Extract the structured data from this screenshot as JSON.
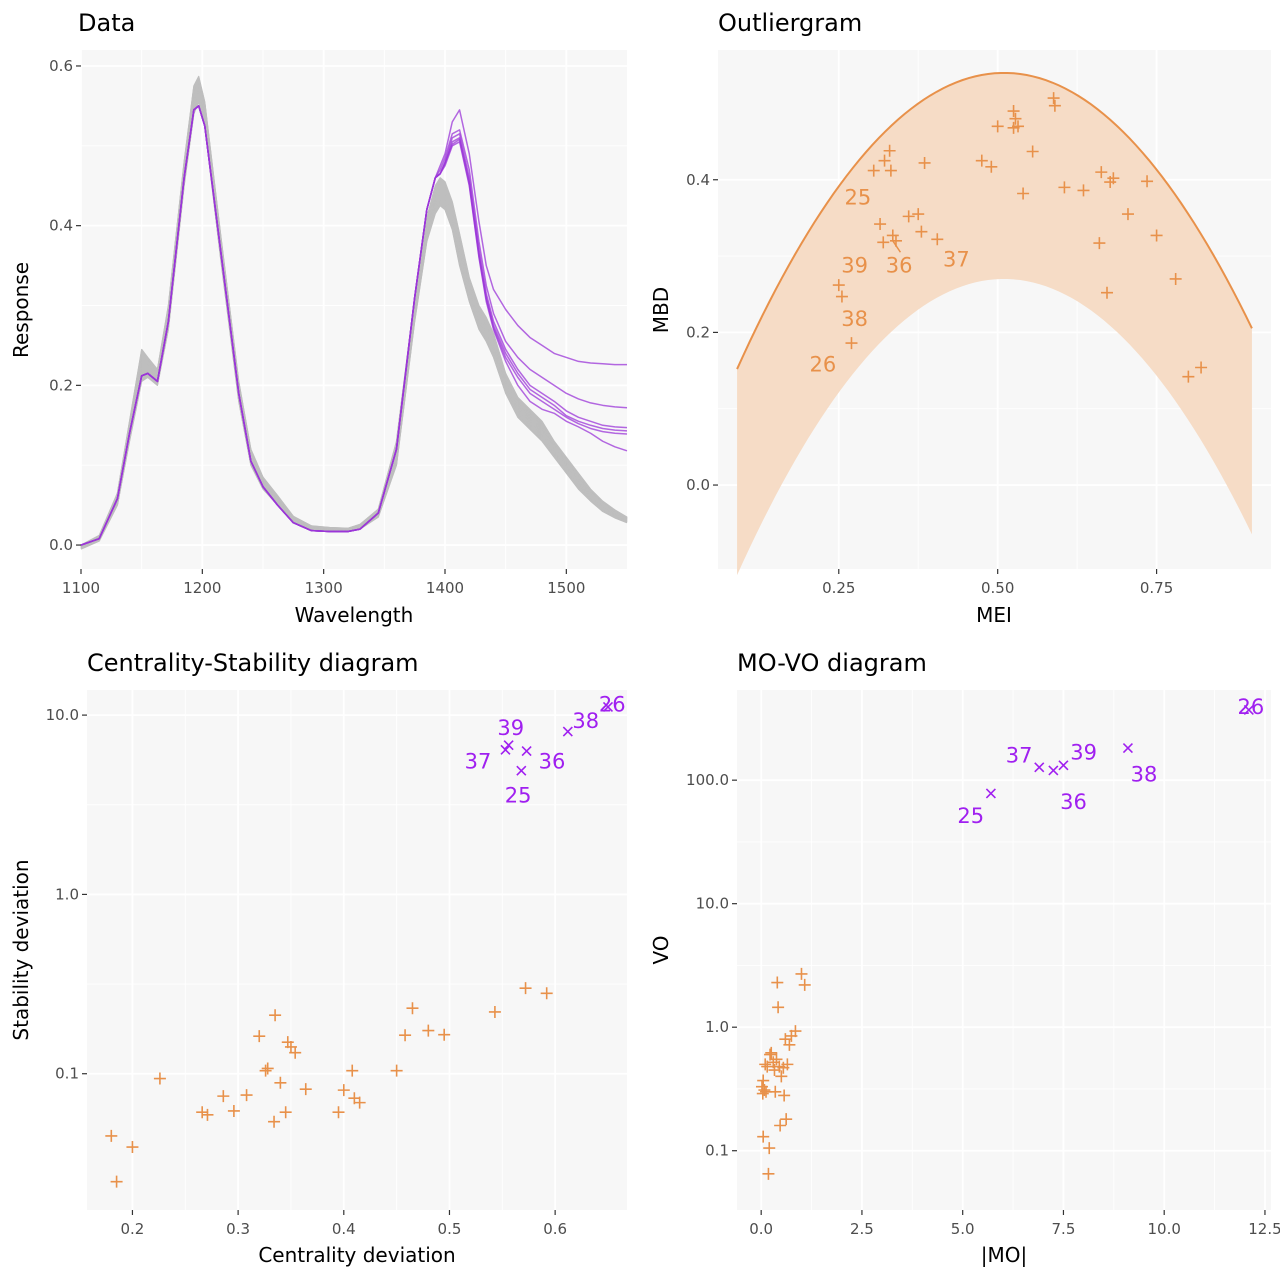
{
  "colors": {
    "background": "#ffffff",
    "panel": "#f7f7f7",
    "grid_major": "#ffffff",
    "regular_curve": "#bebebe",
    "outlier": "#a020f0",
    "outlier_curve": "#9b35d8",
    "regular_point": "#e8914a",
    "band_fill": "#f6dcc6",
    "tick_text": "#4d4d4d"
  },
  "chart_data": [
    {
      "id": "data",
      "type": "line",
      "title": "Data",
      "xlabel": "Wavelength",
      "ylabel": "Response",
      "xlim": [
        1100,
        1550
      ],
      "ylim": [
        -0.03,
        0.62
      ],
      "xticks": [
        1100,
        1200,
        1300,
        1400,
        1500
      ],
      "xtick_labels": [
        "1100",
        "1200",
        "1300",
        "1400",
        "1500"
      ],
      "yticks": [
        0.0,
        0.2,
        0.4,
        0.6
      ],
      "ytick_labels": [
        "0.0",
        "0.2",
        "0.4",
        "0.6"
      ],
      "x": [
        1100,
        1115,
        1130,
        1140,
        1150,
        1155,
        1163,
        1172,
        1185,
        1193,
        1197,
        1202,
        1215,
        1230,
        1240,
        1250,
        1262,
        1275,
        1290,
        1305,
        1320,
        1330,
        1345,
        1360,
        1375,
        1385,
        1392,
        1396,
        1400,
        1406,
        1412,
        1420,
        1428,
        1434,
        1440,
        1450,
        1460,
        1470,
        1480,
        1490,
        1500,
        1510,
        1520,
        1530,
        1540,
        1550
      ],
      "regular_band": {
        "lower": [
          -0.005,
          0.005,
          0.05,
          0.13,
          0.205,
          0.21,
          0.2,
          0.27,
          0.45,
          0.54,
          0.555,
          0.525,
          0.36,
          0.18,
          0.1,
          0.07,
          0.05,
          0.028,
          0.018,
          0.017,
          0.017,
          0.02,
          0.035,
          0.1,
          0.28,
          0.38,
          0.415,
          0.425,
          0.42,
          0.395,
          0.35,
          0.305,
          0.27,
          0.255,
          0.235,
          0.19,
          0.16,
          0.145,
          0.13,
          0.11,
          0.09,
          0.07,
          0.055,
          0.042,
          0.034,
          0.028
        ],
        "upper": [
          0.0,
          0.012,
          0.065,
          0.155,
          0.245,
          0.235,
          0.22,
          0.3,
          0.48,
          0.575,
          0.587,
          0.555,
          0.39,
          0.205,
          0.12,
          0.085,
          0.062,
          0.036,
          0.024,
          0.022,
          0.021,
          0.026,
          0.045,
          0.13,
          0.31,
          0.41,
          0.45,
          0.46,
          0.455,
          0.43,
          0.39,
          0.335,
          0.3,
          0.285,
          0.265,
          0.215,
          0.185,
          0.17,
          0.155,
          0.13,
          0.11,
          0.09,
          0.07,
          0.055,
          0.044,
          0.035
        ]
      },
      "outlier_curves": [
        {
          "values": [
            0.0,
            0.008,
            0.058,
            0.14,
            0.212,
            0.215,
            0.205,
            0.28,
            0.46,
            0.545,
            0.55,
            0.525,
            0.37,
            0.19,
            0.105,
            0.073,
            0.05,
            0.028,
            0.018,
            0.017,
            0.017,
            0.02,
            0.04,
            0.12,
            0.31,
            0.42,
            0.46,
            0.475,
            0.49,
            0.53,
            0.545,
            0.49,
            0.405,
            0.35,
            0.32,
            0.295,
            0.275,
            0.26,
            0.25,
            0.24,
            0.235,
            0.23,
            0.228,
            0.227,
            0.226,
            0.226
          ]
        },
        {
          "values": [
            0.0,
            0.008,
            0.058,
            0.14,
            0.212,
            0.215,
            0.205,
            0.28,
            0.46,
            0.545,
            0.55,
            0.525,
            0.37,
            0.19,
            0.105,
            0.073,
            0.05,
            0.028,
            0.018,
            0.017,
            0.017,
            0.02,
            0.04,
            0.12,
            0.31,
            0.42,
            0.46,
            0.47,
            0.485,
            0.515,
            0.52,
            0.47,
            0.38,
            0.325,
            0.29,
            0.255,
            0.235,
            0.22,
            0.21,
            0.2,
            0.19,
            0.183,
            0.178,
            0.175,
            0.173,
            0.172
          ]
        },
        {
          "values": [
            0.0,
            0.008,
            0.058,
            0.14,
            0.212,
            0.215,
            0.205,
            0.28,
            0.46,
            0.545,
            0.55,
            0.525,
            0.37,
            0.19,
            0.105,
            0.073,
            0.05,
            0.028,
            0.018,
            0.017,
            0.017,
            0.02,
            0.04,
            0.12,
            0.31,
            0.42,
            0.46,
            0.465,
            0.48,
            0.51,
            0.515,
            0.46,
            0.37,
            0.315,
            0.28,
            0.245,
            0.22,
            0.2,
            0.19,
            0.18,
            0.168,
            0.16,
            0.155,
            0.15,
            0.148,
            0.147
          ]
        },
        {
          "values": [
            0.0,
            0.008,
            0.058,
            0.14,
            0.212,
            0.215,
            0.205,
            0.28,
            0.46,
            0.545,
            0.55,
            0.525,
            0.37,
            0.19,
            0.105,
            0.073,
            0.05,
            0.028,
            0.018,
            0.017,
            0.017,
            0.02,
            0.04,
            0.12,
            0.31,
            0.42,
            0.46,
            0.465,
            0.478,
            0.505,
            0.51,
            0.455,
            0.365,
            0.31,
            0.275,
            0.24,
            0.215,
            0.195,
            0.185,
            0.175,
            0.162,
            0.155,
            0.15,
            0.146,
            0.144,
            0.143
          ]
        },
        {
          "values": [
            0.0,
            0.008,
            0.058,
            0.14,
            0.212,
            0.215,
            0.205,
            0.28,
            0.46,
            0.545,
            0.55,
            0.525,
            0.37,
            0.19,
            0.105,
            0.073,
            0.05,
            0.028,
            0.018,
            0.017,
            0.017,
            0.02,
            0.04,
            0.12,
            0.31,
            0.42,
            0.46,
            0.465,
            0.475,
            0.5,
            0.505,
            0.45,
            0.36,
            0.305,
            0.27,
            0.23,
            0.2,
            0.18,
            0.17,
            0.165,
            0.155,
            0.148,
            0.14,
            0.13,
            0.123,
            0.118
          ]
        },
        {
          "values": [
            0.0,
            0.008,
            0.058,
            0.14,
            0.212,
            0.215,
            0.205,
            0.28,
            0.46,
            0.545,
            0.55,
            0.525,
            0.37,
            0.19,
            0.105,
            0.073,
            0.05,
            0.028,
            0.018,
            0.017,
            0.017,
            0.02,
            0.04,
            0.12,
            0.31,
            0.42,
            0.46,
            0.465,
            0.478,
            0.502,
            0.508,
            0.452,
            0.362,
            0.308,
            0.272,
            0.235,
            0.21,
            0.19,
            0.18,
            0.17,
            0.16,
            0.152,
            0.146,
            0.142,
            0.14,
            0.139
          ]
        }
      ]
    },
    {
      "id": "outliergram",
      "type": "scatter",
      "title": "Outliergram",
      "xlabel": "MEI",
      "ylabel": "MBD",
      "xlim": [
        0.06,
        0.93
      ],
      "ylim": [
        -0.11,
        0.57
      ],
      "xticks": [
        0.25,
        0.5,
        0.75
      ],
      "xtick_labels": [
        "0.25",
        "0.50",
        "0.75"
      ],
      "yticks": [
        0.0,
        0.2,
        0.4
      ],
      "ytick_labels": [
        "0.0",
        "0.2",
        "0.4"
      ],
      "parabola": {
        "vertex_x": 0.51,
        "upper_peak": 0.54,
        "lower_peak": 0.27,
        "upper_curvature": 2.2,
        "lower_curvature": 2.2,
        "x_from": 0.09,
        "x_to": 0.9
      },
      "points": [
        [
          0.25,
          0.262
        ],
        [
          0.255,
          0.247
        ],
        [
          0.27,
          0.186
        ],
        [
          0.305,
          0.412
        ],
        [
          0.315,
          0.342
        ],
        [
          0.32,
          0.318
        ],
        [
          0.322,
          0.425
        ],
        [
          0.33,
          0.438
        ],
        [
          0.332,
          0.412
        ],
        [
          0.335,
          0.327
        ],
        [
          0.34,
          0.32
        ],
        [
          0.36,
          0.352
        ],
        [
          0.375,
          0.355
        ],
        [
          0.38,
          0.332
        ],
        [
          0.385,
          0.422
        ],
        [
          0.405,
          0.322
        ],
        [
          0.475,
          0.425
        ],
        [
          0.49,
          0.417
        ],
        [
          0.5,
          0.47
        ],
        [
          0.525,
          0.49
        ],
        [
          0.528,
          0.48
        ],
        [
          0.525,
          0.468
        ],
        [
          0.532,
          0.47
        ],
        [
          0.54,
          0.382
        ],
        [
          0.555,
          0.437
        ],
        [
          0.588,
          0.507
        ],
        [
          0.59,
          0.497
        ],
        [
          0.605,
          0.39
        ],
        [
          0.635,
          0.386
        ],
        [
          0.66,
          0.317
        ],
        [
          0.663,
          0.41
        ],
        [
          0.672,
          0.252
        ],
        [
          0.677,
          0.397
        ],
        [
          0.682,
          0.402
        ],
        [
          0.705,
          0.355
        ],
        [
          0.735,
          0.398
        ],
        [
          0.75,
          0.327
        ],
        [
          0.78,
          0.27
        ],
        [
          0.8,
          0.142
        ],
        [
          0.82,
          0.154
        ]
      ],
      "labels": [
        {
          "text": "25",
          "x": 0.28,
          "y": 0.378
        },
        {
          "text": "39",
          "x": 0.275,
          "y": 0.289
        },
        {
          "text": "36",
          "x": 0.345,
          "y": 0.289
        },
        {
          "text": "37",
          "x": 0.435,
          "y": 0.297
        },
        {
          "text": "38",
          "x": 0.275,
          "y": 0.219
        },
        {
          "text": "26",
          "x": 0.225,
          "y": 0.159
        }
      ],
      "leader_lines": [
        [
          0.335,
          0.32,
          0.347,
          0.305
        ]
      ]
    },
    {
      "id": "centrality-stability",
      "type": "scatter",
      "title": "Centrality-Stability diagram",
      "xlabel": "Centrality deviation",
      "ylabel": "Stability deviation",
      "xlim": [
        0.157,
        0.668
      ],
      "ylim_log10": [
        -1.76,
        1.14
      ],
      "log_y": true,
      "xticks": [
        0.2,
        0.3,
        0.4,
        0.5,
        0.6
      ],
      "xtick_labels": [
        "0.2",
        "0.3",
        "0.4",
        "0.5",
        "0.6"
      ],
      "yticks": [
        0.1,
        1.0,
        10.0
      ],
      "ytick_labels": [
        "0.1",
        "1.0",
        "10.0"
      ],
      "regular_points": [
        [
          0.18,
          0.045
        ],
        [
          0.185,
          0.025
        ],
        [
          0.2,
          0.039
        ],
        [
          0.226,
          0.094
        ],
        [
          0.266,
          0.061
        ],
        [
          0.271,
          0.059
        ],
        [
          0.286,
          0.075
        ],
        [
          0.296,
          0.062
        ],
        [
          0.308,
          0.076
        ],
        [
          0.32,
          0.162
        ],
        [
          0.326,
          0.104
        ],
        [
          0.328,
          0.107
        ],
        [
          0.334,
          0.054
        ],
        [
          0.335,
          0.212
        ],
        [
          0.34,
          0.089
        ],
        [
          0.345,
          0.061
        ],
        [
          0.347,
          0.15
        ],
        [
          0.35,
          0.141
        ],
        [
          0.354,
          0.131
        ],
        [
          0.364,
          0.082
        ],
        [
          0.395,
          0.061
        ],
        [
          0.4,
          0.081
        ],
        [
          0.408,
          0.104
        ],
        [
          0.41,
          0.073
        ],
        [
          0.415,
          0.069
        ],
        [
          0.45,
          0.104
        ],
        [
          0.458,
          0.164
        ],
        [
          0.465,
          0.232
        ],
        [
          0.48,
          0.174
        ],
        [
          0.495,
          0.165
        ],
        [
          0.543,
          0.221
        ],
        [
          0.572,
          0.3
        ],
        [
          0.592,
          0.281
        ]
      ],
      "outlier_points": [
        {
          "label": "25",
          "x": 0.568,
          "y": 4.9
        },
        {
          "label": "37",
          "x": 0.553,
          "y": 6.4
        },
        {
          "label": "39",
          "x": 0.556,
          "y": 6.8
        },
        {
          "label": "36",
          "x": 0.573,
          "y": 6.3
        },
        {
          "label": "38",
          "x": 0.612,
          "y": 8.1
        },
        {
          "label": "26",
          "x": 0.65,
          "y": 11.1
        }
      ],
      "labels": [
        {
          "text": "39",
          "x": 0.558,
          "y": 8.6
        },
        {
          "text": "37",
          "x": 0.527,
          "y": 5.6
        },
        {
          "text": "36",
          "x": 0.597,
          "y": 5.6
        },
        {
          "text": "25",
          "x": 0.565,
          "y": 3.6
        },
        {
          "text": "38",
          "x": 0.629,
          "y": 9.4
        },
        {
          "text": "26",
          "x": 0.654,
          "y": 11.6
        }
      ]
    },
    {
      "id": "mo-vo",
      "type": "scatter",
      "title": "MO-VO diagram",
      "xlabel": "|MO|",
      "ylabel": "VO",
      "xlim": [
        -0.6,
        12.65
      ],
      "ylim_log10": [
        -1.48,
        2.73
      ],
      "log_y": true,
      "xticks": [
        0.0,
        2.5,
        5.0,
        7.5,
        10.0,
        12.5
      ],
      "xtick_labels": [
        "0.0",
        "2.5",
        "5.0",
        "7.5",
        "10.0",
        "12.5"
      ],
      "yticks": [
        0.1,
        1.0,
        10.0,
        100.0
      ],
      "ytick_labels": [
        "0.1",
        "1.0",
        "10.0",
        "100.0"
      ],
      "regular_points": [
        [
          0.02,
          0.33
        ],
        [
          0.04,
          0.29
        ],
        [
          0.05,
          0.37
        ],
        [
          0.05,
          0.13
        ],
        [
          0.08,
          0.31
        ],
        [
          0.1,
          0.5
        ],
        [
          0.12,
          0.3
        ],
        [
          0.15,
          0.48
        ],
        [
          0.18,
          0.065
        ],
        [
          0.2,
          0.105
        ],
        [
          0.22,
          0.6
        ],
        [
          0.25,
          0.62
        ],
        [
          0.3,
          0.52
        ],
        [
          0.33,
          0.45
        ],
        [
          0.35,
          0.3
        ],
        [
          0.38,
          0.55
        ],
        [
          0.4,
          2.3
        ],
        [
          0.42,
          1.45
        ],
        [
          0.45,
          0.48
        ],
        [
          0.47,
          0.16
        ],
        [
          0.5,
          0.4
        ],
        [
          0.55,
          0.47
        ],
        [
          0.57,
          0.28
        ],
        [
          0.6,
          0.8
        ],
        [
          0.62,
          0.18
        ],
        [
          0.65,
          0.5
        ],
        [
          0.7,
          0.72
        ],
        [
          0.75,
          0.85
        ],
        [
          0.85,
          0.93
        ],
        [
          1.0,
          2.7
        ],
        [
          1.08,
          2.2
        ]
      ],
      "outlier_points": [
        {
          "label": "25",
          "x": 5.7,
          "y": 78
        },
        {
          "label": "37",
          "x": 6.9,
          "y": 127
        },
        {
          "label": "36",
          "x": 7.25,
          "y": 120
        },
        {
          "label": "39",
          "x": 7.5,
          "y": 132
        },
        {
          "label": "38",
          "x": 9.1,
          "y": 182
        },
        {
          "label": "26",
          "x": 12.1,
          "y": 370
        }
      ],
      "labels": [
        {
          "text": "37",
          "x": 6.4,
          "y": 161
        },
        {
          "text": "39",
          "x": 8.0,
          "y": 170
        },
        {
          "text": "38",
          "x": 9.5,
          "y": 113
        },
        {
          "text": "36",
          "x": 7.75,
          "y": 68
        },
        {
          "text": "25",
          "x": 5.2,
          "y": 52
        },
        {
          "text": "26",
          "x": 12.15,
          "y": 399
        }
      ]
    }
  ]
}
